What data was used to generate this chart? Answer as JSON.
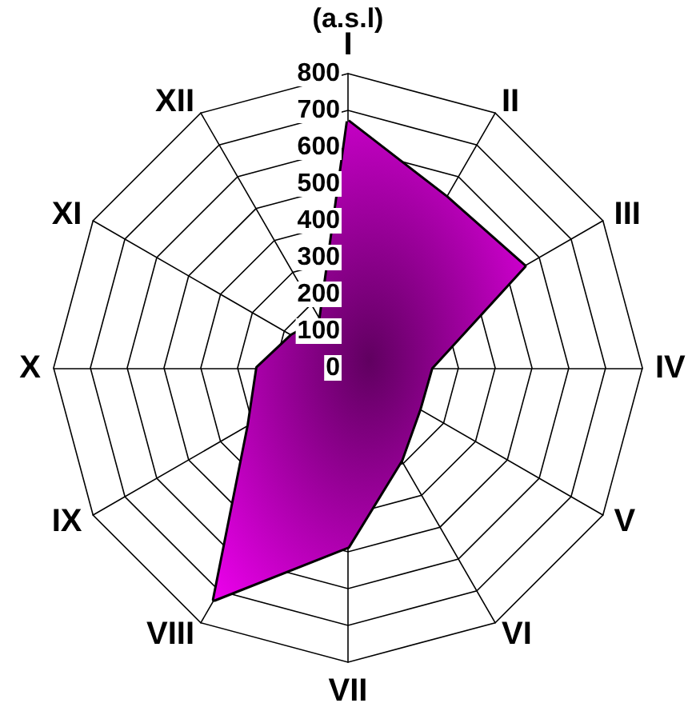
{
  "chart_data": {
    "type": "radar",
    "title": "(a.s.l)",
    "categories": [
      "I",
      "II",
      "III",
      "IV",
      "V",
      "VI",
      "VII",
      "VIII",
      "IX",
      "X",
      "XI",
      "XII"
    ],
    "series": [
      {
        "color": "#ff00ff",
        "values": [
          670,
          535,
          553,
          226,
          224,
          289,
          486,
          727,
          311,
          246,
          176,
          150
        ]
      }
    ],
    "ylim": [
      0,
      800
    ],
    "yticks": [
      0,
      100,
      200,
      300,
      400,
      500,
      600,
      700,
      800
    ],
    "grid": true
  }
}
